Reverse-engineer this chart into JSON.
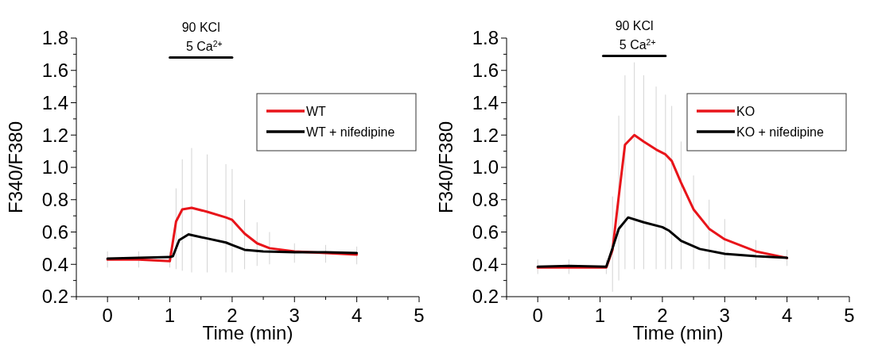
{
  "chart_data": [
    {
      "type": "line",
      "xlabel": "Time (min)",
      "ylabel": "F340/F380",
      "legend": "top right",
      "marker": "none",
      "line_style": "solid",
      "xlim": [
        -0.5,
        5
      ],
      "xticks": [
        {
          "value": -0.5,
          "label": null
        },
        0,
        {
          "value": 0.5,
          "label": null
        },
        1,
        {
          "value": 1.5,
          "label": null
        },
        2,
        {
          "value": 2.5,
          "label": null
        },
        3,
        {
          "value": 3.5,
          "label": null
        },
        4,
        {
          "value": 4.5,
          "label": null
        },
        5
      ],
      "ylim": [
        0.2,
        1.8
      ],
      "yticks": [
        0.2,
        {
          "value": 0.3,
          "label": null
        },
        0.4,
        {
          "value": 0.5,
          "label": null
        },
        0.6,
        {
          "value": 0.7,
          "label": null
        },
        0.8,
        {
          "value": 0.9,
          "label": null
        },
        {
          "value": 1,
          "label": "1.0"
        },
        {
          "value": 1.1,
          "label": null
        },
        1.2,
        {
          "value": 1.3,
          "label": null
        },
        1.4,
        {
          "value": 1.5,
          "label": null
        },
        1.6,
        {
          "value": 1.7,
          "label": null
        },
        1.8
      ],
      "annotations": [
        "90 KCl\n5 Ca$^{2+}$"
      ],
      "series": [
        {
          "color": "#000000",
          "x": [
            1,
            2
          ],
          "values": [
            1.68,
            1.68
          ]
        },
        {
          "name": "WT",
          "color": "#e8141a",
          "x": [
            0,
            0.5,
            1.0,
            1.1,
            1.2,
            1.35,
            1.6,
            1.9,
            2.0,
            2.2,
            2.4,
            2.6,
            3.0,
            3.5,
            4.0
          ],
          "values": [
            0.43,
            0.43,
            0.42,
            0.665,
            0.74,
            0.75,
            0.725,
            0.69,
            0.675,
            0.59,
            0.53,
            0.5,
            0.48,
            0.47,
            0.46
          ],
          "errors": [
            [
              0.38,
              0.48
            ],
            [
              0.38,
              0.48
            ],
            [
              0.38,
              0.48
            ],
            [
              0.37,
              0.87
            ],
            [
              0.36,
              1.05
            ],
            [
              0.35,
              1.12
            ],
            [
              0.35,
              1.08
            ],
            [
              0.35,
              1.02
            ],
            [
              0.35,
              0.99
            ],
            [
              0.37,
              0.8
            ],
            [
              0.39,
              0.66
            ],
            [
              0.4,
              0.6
            ],
            [
              0.41,
              0.53
            ],
            [
              0.41,
              0.52
            ],
            [
              0.4,
              0.51
            ]
          ]
        },
        {
          "name": "WT + nifedipine",
          "color": "#000000",
          "x": [
            0,
            0.5,
            1.0,
            1.05,
            1.15,
            1.3,
            1.6,
            1.9,
            2.0,
            2.2,
            2.5,
            3.0,
            3.5,
            4.0
          ],
          "values": [
            0.435,
            0.44,
            0.445,
            0.45,
            0.55,
            0.585,
            0.56,
            0.535,
            0.52,
            0.49,
            0.48,
            0.475,
            0.475,
            0.47
          ]
        }
      ]
    },
    {
      "type": "line",
      "xlabel": "Time (min)",
      "ylabel": "F340/F380",
      "legend": "top right",
      "marker": "none",
      "line_style": "solid",
      "xlim": [
        -0.5,
        5
      ],
      "xticks": [
        {
          "value": -0.5,
          "label": null
        },
        0,
        {
          "value": 0.5,
          "label": null
        },
        1,
        {
          "value": 1.5,
          "label": null
        },
        2,
        {
          "value": 2.5,
          "label": null
        },
        3,
        {
          "value": 3.5,
          "label": null
        },
        4,
        {
          "value": 4.5,
          "label": null
        },
        5
      ],
      "ylim": [
        0.2,
        1.8
      ],
      "yticks": [
        0.2,
        {
          "value": 0.3,
          "label": null
        },
        0.4,
        {
          "value": 0.5,
          "label": null
        },
        0.6,
        {
          "value": 0.7,
          "label": null
        },
        0.8,
        {
          "value": 0.9,
          "label": null
        },
        {
          "value": 1,
          "label": "1.0"
        },
        {
          "value": 1.1,
          "label": null
        },
        1.2,
        {
          "value": 1.3,
          "label": null
        },
        1.4,
        {
          "value": 1.5,
          "label": null
        },
        1.6,
        {
          "value": 1.7,
          "label": null
        },
        1.8
      ],
      "annotations": [
        "90 KCl\n5 Ca$^{2+}$"
      ],
      "series": [
        {
          "color": "#000000",
          "x": [
            1.05,
            2.05
          ],
          "values": [
            1.69,
            1.69
          ]
        },
        {
          "name": "KO",
          "color": "#e8141a",
          "x": [
            0,
            0.5,
            1.1,
            1.2,
            1.3,
            1.4,
            1.55,
            1.7,
            1.9,
            2.05,
            2.15,
            2.3,
            2.5,
            2.75,
            3.0,
            3.5,
            4.0
          ],
          "values": [
            0.38,
            0.38,
            0.38,
            0.49,
            0.82,
            1.14,
            1.2,
            1.16,
            1.11,
            1.08,
            1.04,
            0.905,
            0.74,
            0.62,
            0.555,
            0.48,
            0.44
          ],
          "errors": [
            [
              0.34,
              0.43
            ],
            [
              0.34,
              0.43
            ],
            [
              0.34,
              0.43
            ],
            [
              0.23,
              0.82
            ],
            [
              0.3,
              1.32
            ],
            [
              0.37,
              1.57
            ],
            [
              0.37,
              1.65
            ],
            [
              0.37,
              1.57
            ],
            [
              0.37,
              1.5
            ],
            [
              0.37,
              1.45
            ],
            [
              0.37,
              1.38
            ],
            [
              0.37,
              1.16
            ],
            [
              0.37,
              0.95
            ],
            [
              0.37,
              0.8
            ],
            [
              0.37,
              0.68
            ],
            [
              0.38,
              0.55
            ],
            [
              0.39,
              0.49
            ]
          ]
        },
        {
          "name": "KO + nifedipine",
          "color": "#000000",
          "x": [
            0,
            0.5,
            1.1,
            1.2,
            1.3,
            1.45,
            1.7,
            2.0,
            2.1,
            2.3,
            2.6,
            3.0,
            3.5,
            4.0
          ],
          "values": [
            0.385,
            0.39,
            0.385,
            0.5,
            0.62,
            0.69,
            0.66,
            0.63,
            0.61,
            0.545,
            0.495,
            0.465,
            0.45,
            0.44
          ]
        }
      ]
    }
  ]
}
